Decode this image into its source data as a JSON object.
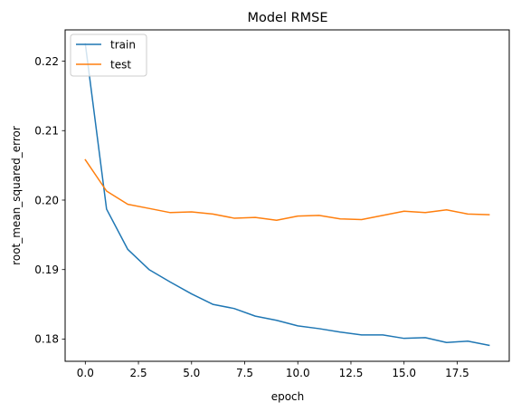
{
  "chart_data": {
    "type": "line",
    "title": "Model RMSE",
    "xlabel": "epoch",
    "ylabel": "root_mean_squared_error",
    "xlim": [
      -0.95,
      19.95
    ],
    "ylim": [
      0.1768,
      0.2245
    ],
    "x_ticks": [
      0.0,
      2.5,
      5.0,
      7.5,
      10.0,
      12.5,
      15.0,
      17.5
    ],
    "x_tick_labels": [
      "0.0",
      "2.5",
      "5.0",
      "7.5",
      "10.0",
      "12.5",
      "15.0",
      "17.5"
    ],
    "y_ticks": [
      0.18,
      0.19,
      0.2,
      0.21,
      0.22
    ],
    "y_tick_labels": [
      "0.18",
      "0.19",
      "0.20",
      "0.21",
      "0.22"
    ],
    "grid": false,
    "legend_position": "upper left",
    "x": [
      0,
      1,
      2,
      3,
      4,
      5,
      6,
      7,
      8,
      9,
      10,
      11,
      12,
      13,
      14,
      15,
      16,
      17,
      18,
      19
    ],
    "series": [
      {
        "name": "train",
        "color": "#1f77b4",
        "values": [
          0.2225,
          0.1987,
          0.1929,
          0.19,
          0.1882,
          0.1865,
          0.185,
          0.1844,
          0.1833,
          0.1827,
          0.1819,
          0.1815,
          0.181,
          0.1806,
          0.1806,
          0.1801,
          0.1802,
          0.1795,
          0.1797,
          0.1791
        ]
      },
      {
        "name": "test",
        "color": "#ff7f0e",
        "values": [
          0.2058,
          0.2013,
          0.1994,
          0.1988,
          0.1982,
          0.1983,
          0.198,
          0.1974,
          0.1975,
          0.1971,
          0.1977,
          0.1978,
          0.1973,
          0.1972,
          0.1978,
          0.1984,
          0.1982,
          0.1986,
          0.198,
          0.1979
        ]
      }
    ]
  }
}
